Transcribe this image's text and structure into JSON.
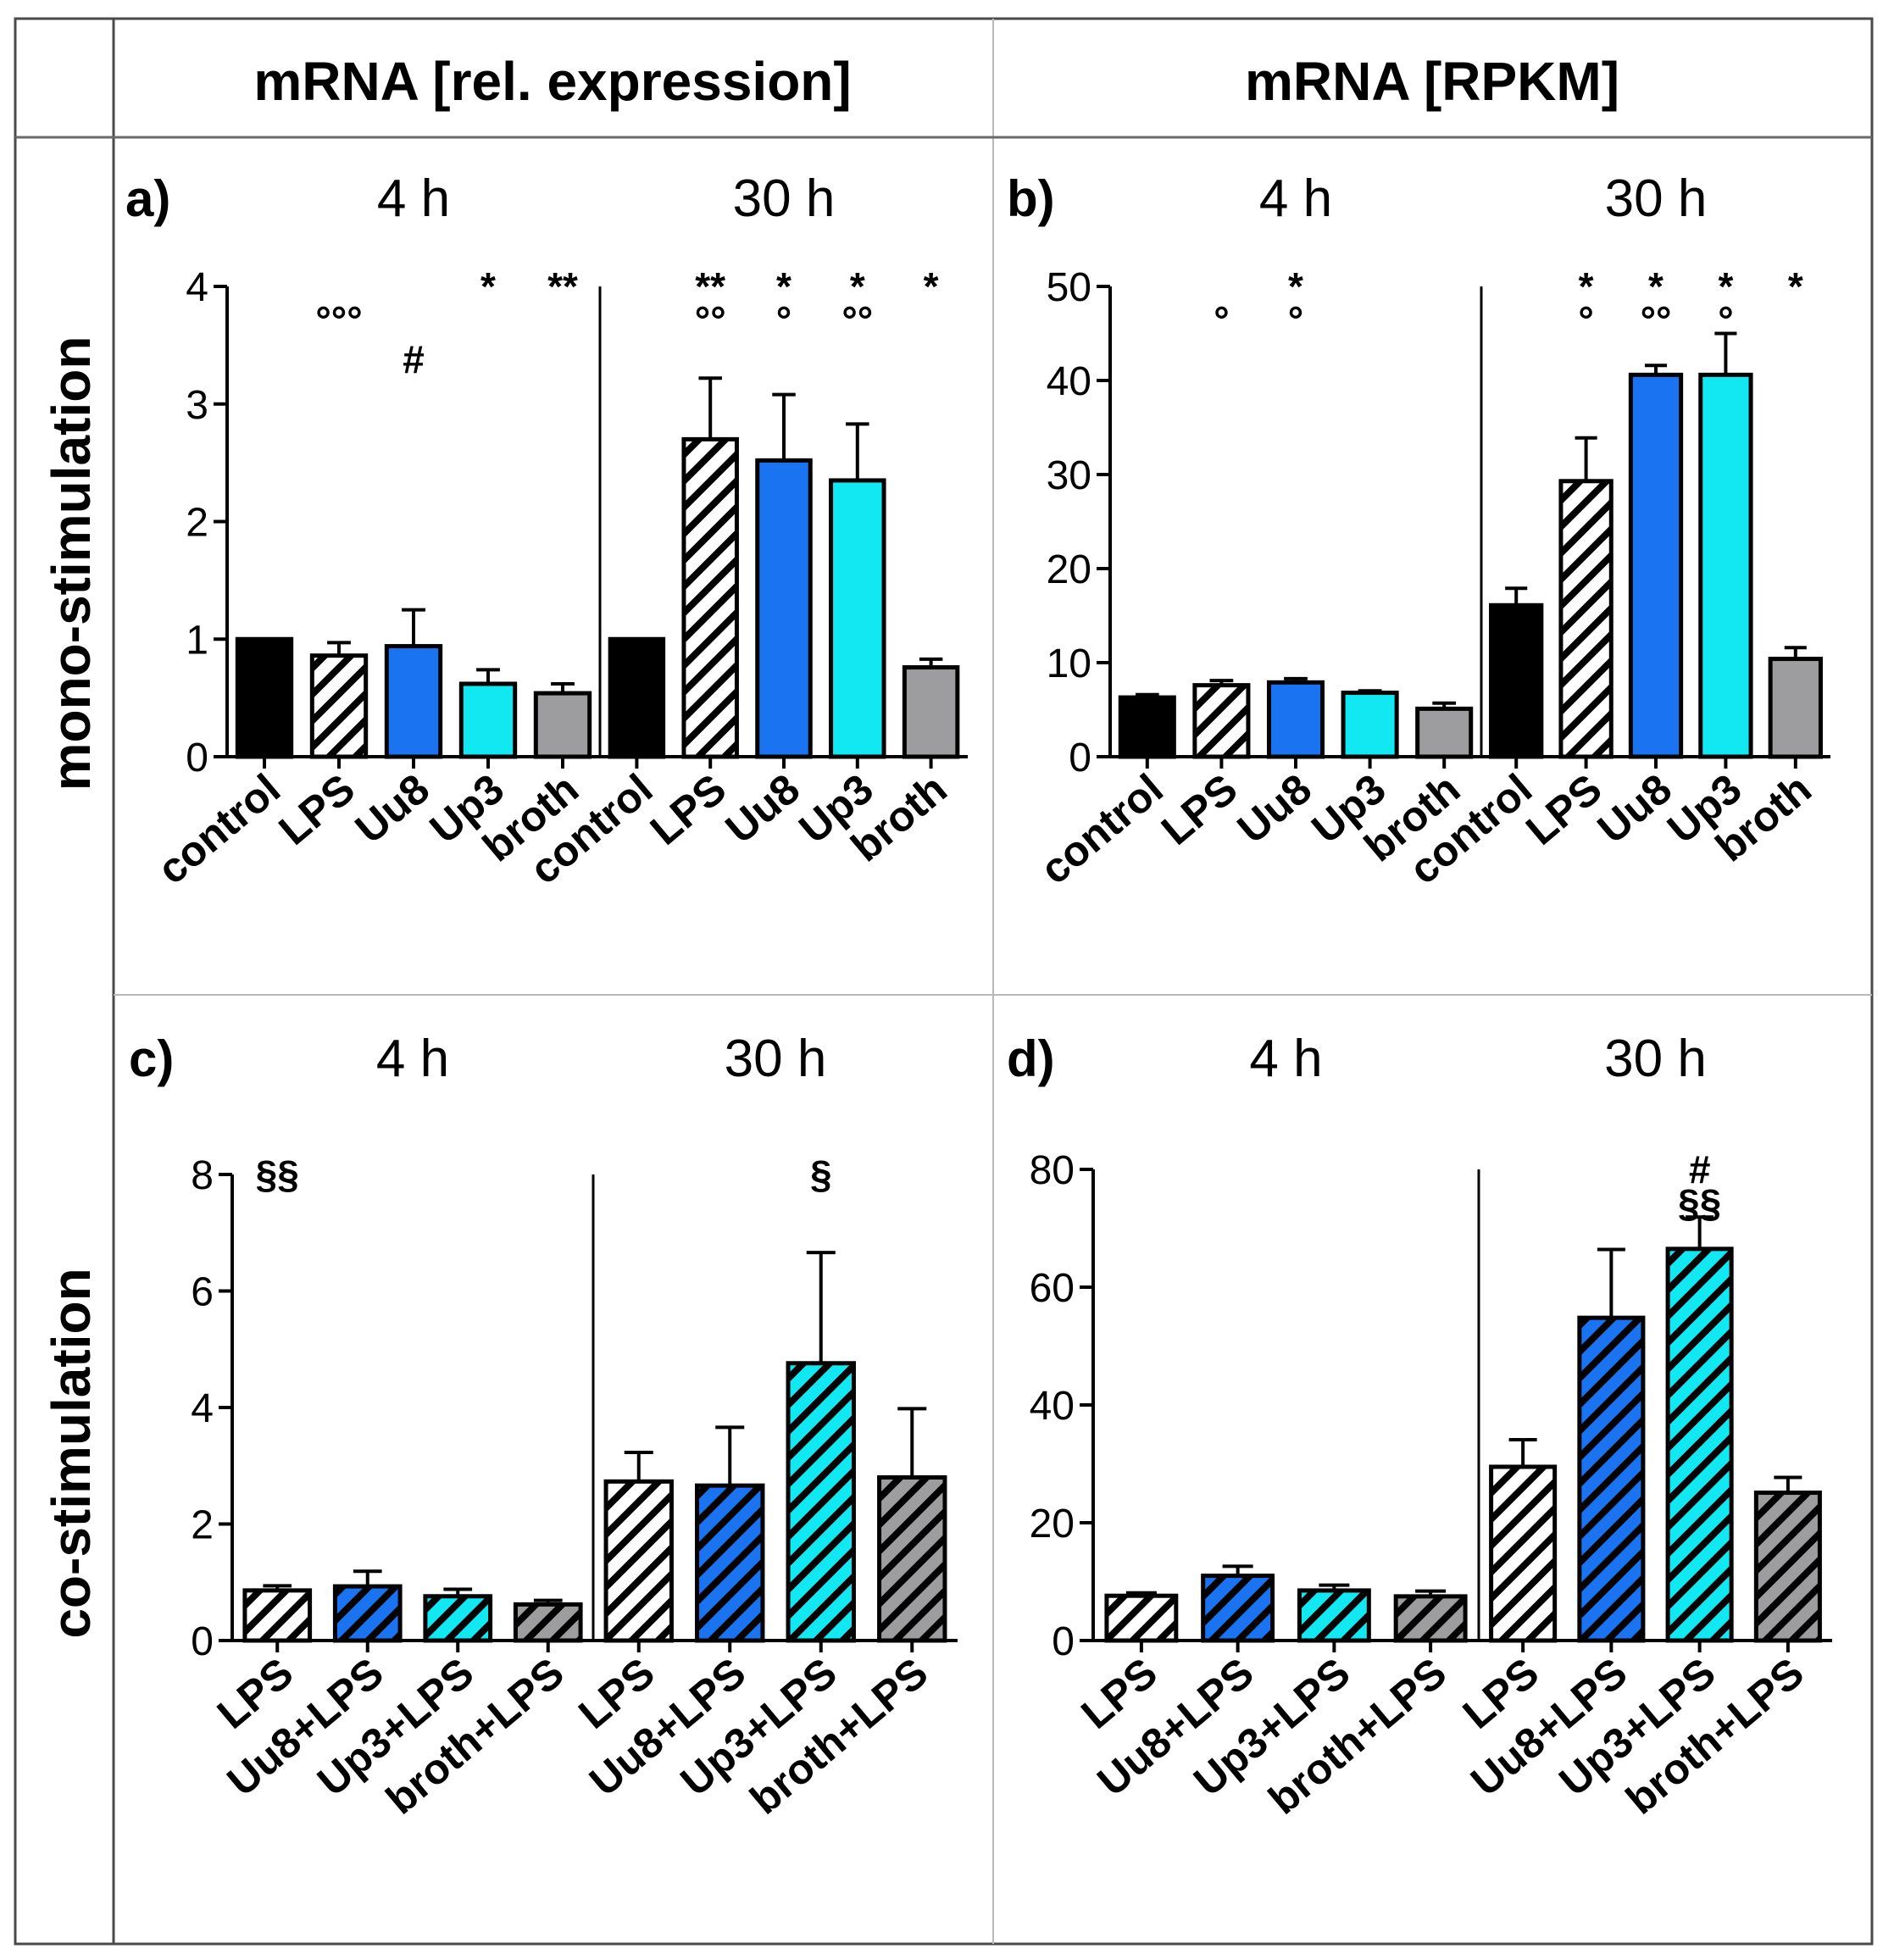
{
  "headers": {
    "col1": "mRNA [rel. expression]",
    "col2": "mRNA [RPKM]",
    "row1": "mono-stimulation",
    "row2": "co-stimulation"
  },
  "colors": {
    "control": "#000000",
    "LPS": "#ffffff",
    "Uu8": "#1a73f0",
    "Up3": "#11e8f2",
    "broth": "#9d9d9f",
    "grid": "#9a9a9a"
  },
  "chart_data": [
    {
      "id": "a",
      "type": "bar",
      "panel_label": "a)",
      "ylim": [
        0,
        4
      ],
      "yticks": [
        "0",
        "1",
        "2",
        "3",
        "4"
      ],
      "groups": [
        {
          "title": "4 h",
          "categories": [
            "control",
            "LPS",
            "Uu8",
            "Up3",
            "broth"
          ],
          "values": [
            1.0,
            0.86,
            0.94,
            0.62,
            0.54
          ],
          "errors": [
            0.0,
            0.11,
            0.31,
            0.12,
            0.08
          ],
          "fills": [
            "control",
            "LPS",
            "Uu8",
            "Up3",
            "broth"
          ],
          "hatched": [
            false,
            true,
            false,
            false,
            false
          ],
          "sig_top": [
            "",
            "",
            "",
            "*",
            "**"
          ],
          "sig_mid": [
            "",
            "°°°",
            "",
            "",
            ""
          ],
          "sig_low": [
            "",
            "",
            "#",
            "",
            ""
          ]
        },
        {
          "title": "30 h",
          "categories": [
            "control",
            "LPS",
            "Uu8",
            "Up3",
            "broth"
          ],
          "values": [
            1.0,
            2.7,
            2.52,
            2.35,
            0.76
          ],
          "errors": [
            0.0,
            0.52,
            0.56,
            0.48,
            0.07
          ],
          "fills": [
            "control",
            "LPS",
            "Uu8",
            "Up3",
            "broth"
          ],
          "hatched": [
            false,
            true,
            false,
            false,
            false
          ],
          "sig_top": [
            "",
            "**",
            "*",
            "*",
            "*"
          ],
          "sig_mid": [
            "",
            "°°",
            "°",
            "°°",
            ""
          ],
          "sig_low": [
            "",
            "",
            "",
            "",
            ""
          ]
        }
      ]
    },
    {
      "id": "b",
      "type": "bar",
      "panel_label": "b)",
      "ylim": [
        0,
        50
      ],
      "yticks": [
        "0",
        "10",
        "20",
        "30",
        "40",
        "50"
      ],
      "groups": [
        {
          "title": "4 h",
          "categories": [
            "control",
            "LPS",
            "Uu8",
            "Up3",
            "broth"
          ],
          "values": [
            6.3,
            7.6,
            7.9,
            6.8,
            5.1
          ],
          "errors": [
            0.3,
            0.5,
            0.4,
            0.2,
            0.6
          ],
          "fills": [
            "control",
            "LPS",
            "Uu8",
            "Up3",
            "broth"
          ],
          "hatched": [
            false,
            true,
            false,
            false,
            false
          ],
          "sig_top": [
            "",
            "",
            "*",
            "",
            ""
          ],
          "sig_mid": [
            "",
            "°",
            "°",
            "",
            ""
          ],
          "sig_low": [
            "",
            "",
            "",
            "",
            ""
          ]
        },
        {
          "title": "30 h",
          "categories": [
            "control",
            "LPS",
            "Uu8",
            "Up3",
            "broth"
          ],
          "values": [
            16.1,
            29.3,
            40.6,
            40.6,
            10.4
          ],
          "errors": [
            1.8,
            4.6,
            1.0,
            4.4,
            1.2
          ],
          "fills": [
            "control",
            "LPS",
            "Uu8",
            "Up3",
            "broth"
          ],
          "hatched": [
            false,
            true,
            false,
            false,
            false
          ],
          "sig_top": [
            "",
            "*",
            "*",
            "*",
            "*"
          ],
          "sig_mid": [
            "",
            "°",
            "°°",
            "°",
            ""
          ],
          "sig_low": [
            "",
            "",
            "",
            "",
            ""
          ]
        }
      ]
    },
    {
      "id": "c",
      "type": "bar",
      "panel_label": "c)",
      "ylim": [
        0,
        8
      ],
      "yticks": [
        "0",
        "2",
        "4",
        "6",
        "8"
      ],
      "groups": [
        {
          "title": "4 h",
          "categories": [
            "LPS",
            "Uu8+LPS",
            "Up3+LPS",
            "broth+LPS"
          ],
          "values": [
            0.86,
            0.93,
            0.76,
            0.62
          ],
          "errors": [
            0.08,
            0.26,
            0.12,
            0.07
          ],
          "fills": [
            "LPS",
            "Uu8",
            "Up3",
            "broth"
          ],
          "hatched": [
            true,
            true,
            true,
            true
          ],
          "sig_top": [
            "§§",
            "",
            "",
            ""
          ],
          "sig_mid": [
            "",
            "",
            "",
            ""
          ],
          "sig_low": [
            "",
            "",
            "",
            ""
          ]
        },
        {
          "title": "30 h",
          "categories": [
            "LPS",
            "Uu8+LPS",
            "Up3+LPS",
            "broth+LPS"
          ],
          "values": [
            2.73,
            2.66,
            4.76,
            2.8
          ],
          "errors": [
            0.5,
            1.0,
            1.9,
            1.18
          ],
          "fills": [
            "LPS",
            "Uu8",
            "Up3",
            "broth"
          ],
          "hatched": [
            true,
            true,
            true,
            true
          ],
          "sig_top": [
            "",
            "",
            "§",
            ""
          ],
          "sig_mid": [
            "",
            "",
            "",
            ""
          ],
          "sig_low": [
            "",
            "",
            "",
            ""
          ]
        }
      ]
    },
    {
      "id": "d",
      "type": "bar",
      "panel_label": "d)",
      "ylim": [
        0,
        80
      ],
      "yticks": [
        "0",
        "20",
        "40",
        "60",
        "80"
      ],
      "groups": [
        {
          "title": "4 h",
          "categories": [
            "LPS",
            "Uu8+LPS",
            "Up3+LPS",
            "broth+LPS"
          ],
          "values": [
            7.6,
            11.0,
            8.5,
            7.5
          ],
          "errors": [
            0.5,
            1.6,
            0.9,
            0.9
          ],
          "fills": [
            "LPS",
            "Uu8",
            "Up3",
            "broth"
          ],
          "hatched": [
            true,
            true,
            true,
            true
          ],
          "sig_top": [
            "",
            "",
            "",
            ""
          ],
          "sig_mid": [
            "",
            "",
            "",
            ""
          ],
          "sig_low": [
            "",
            "",
            "",
            ""
          ]
        },
        {
          "title": "30 h",
          "categories": [
            "LPS",
            "Uu8+LPS",
            "Up3+LPS",
            "broth+LPS"
          ],
          "values": [
            29.5,
            54.8,
            66.5,
            25.1
          ],
          "errors": [
            4.6,
            11.6,
            5.4,
            2.6
          ],
          "fills": [
            "LPS",
            "Uu8",
            "Up3",
            "broth"
          ],
          "hatched": [
            true,
            true,
            true,
            true
          ],
          "sig_top": [
            "",
            "",
            "#",
            ""
          ],
          "sig_mid": [
            "",
            "",
            "§§",
            ""
          ],
          "sig_low": [
            "",
            "",
            "",
            ""
          ]
        }
      ]
    }
  ]
}
